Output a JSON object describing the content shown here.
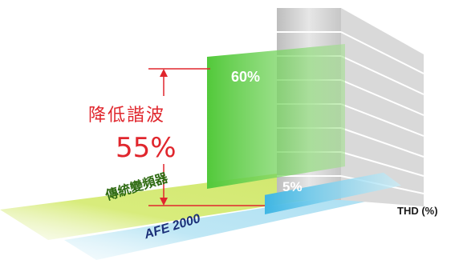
{
  "chart_data": {
    "type": "bar",
    "title": "降低諧波",
    "annotation": "55%",
    "categories": [
      "傳統變頻器",
      "AFE 2000"
    ],
    "series": [
      {
        "values": [
          60,
          5
        ]
      }
    ],
    "value_labels": [
      "60%",
      "5%"
    ],
    "axis_label": "THD (%)",
    "colors": {
      "traditional": "#4fc93a",
      "afe": "#7fd4ef",
      "arrow": "#e0262d",
      "wall": "#cfcfcf"
    }
  }
}
